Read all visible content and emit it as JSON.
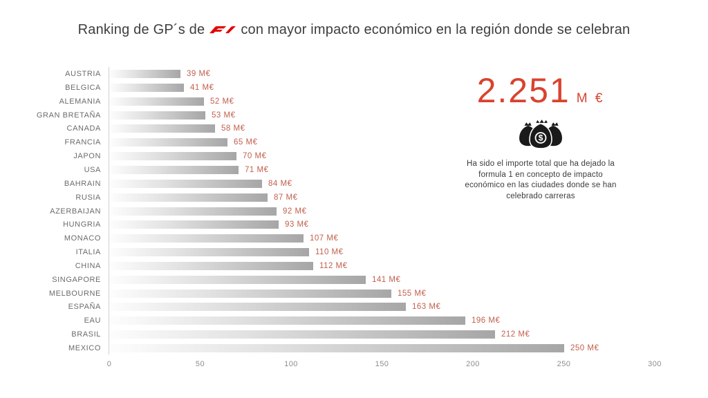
{
  "title": {
    "prefix": "Ranking de GP´s de",
    "suffix": "con mayor impacto económico en la región donde se celebran",
    "logo": "f1-logo"
  },
  "chart_data": {
    "type": "bar",
    "orientation": "horizontal",
    "title": "Ranking de GP´s de F1 con mayor impacto económico en la región donde se celebran",
    "categories": [
      "AUSTRIA",
      "BELGICA",
      "ALEMANIA",
      "GRAN BRETAÑA",
      "CANADA",
      "FRANCIA",
      "JAPON",
      "USA",
      "BAHRAIN",
      "RUSIA",
      "AZERBAIJAN",
      "HUNGRIA",
      "MONACO",
      "ITALIA",
      "CHINA",
      "SINGAPORE",
      "MELBOURNE",
      "ESPAÑA",
      "EAU",
      "BRASIL",
      "MEXICO"
    ],
    "values": [
      39,
      41,
      52,
      53,
      58,
      65,
      70,
      71,
      84,
      87,
      92,
      93,
      107,
      110,
      112,
      141,
      155,
      163,
      196,
      212,
      250
    ],
    "value_suffix": " M€",
    "xlabel": "",
    "ylabel": "",
    "xlim": [
      0,
      300
    ],
    "x_ticks": [
      0,
      50,
      100,
      150,
      200,
      250,
      300
    ],
    "grid": false,
    "legend": "none"
  },
  "total_panel": {
    "value": "2.251",
    "unit": "M €",
    "icon": "money-bags-icon",
    "description": "Ha sido el importe total que ha dejado la formula 1 en concepto de impacto económico en las ciudades donde se han celebrado carreras",
    "description_lines": [
      "Ha sido el importe total que ha dejado la",
      "formula 1 en concepto de impacto",
      "económico en las ciudades donde se han",
      "celebrado carreras"
    ]
  },
  "colors": {
    "f1_logo": "#e10600",
    "value_label": "#c2604d",
    "total_value": "#d9432f",
    "bar_gradient_start": "#fdfdfd",
    "bar_gradient_end": "#a6a6a6",
    "category_label": "#6b6b6b",
    "tick_label": "#8c8c8c",
    "title_text": "#3d3d3d"
  }
}
